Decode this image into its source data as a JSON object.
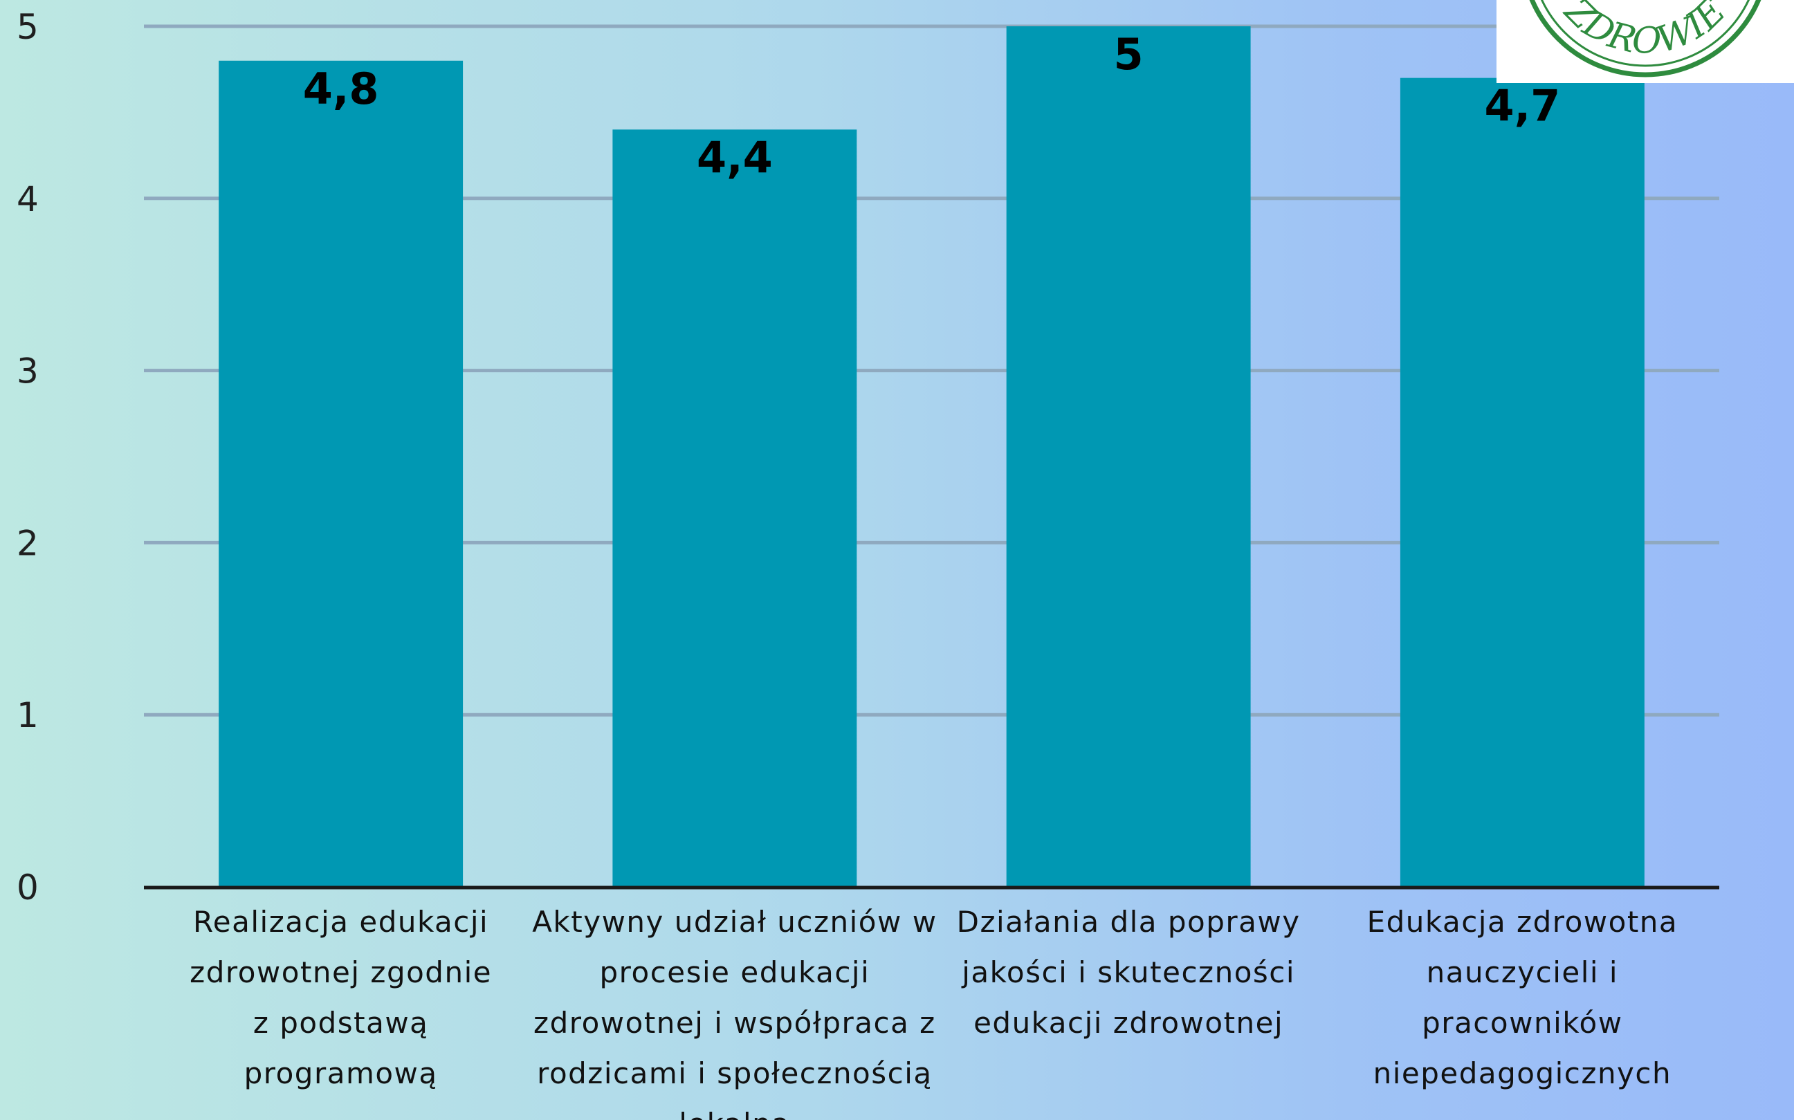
{
  "chart_data": {
    "type": "bar",
    "categories": [
      [
        "Realizacja edukacji",
        "zdrowotnej zgodnie",
        "z podstawą",
        "programową"
      ],
      [
        "Aktywny udział uczniów w",
        "procesie edukacji",
        "zdrowotnej i współpraca z",
        "rodzicami i społecznością",
        "lokalną"
      ],
      [
        "Działania dla poprawy",
        "jakości  i skuteczności",
        "edukacji zdrowotnej"
      ],
      [
        "Edukacja zdrowotna",
        "nauczycieli i",
        "pracowników",
        "niepedagogicznych"
      ]
    ],
    "values": [
      4.8,
      4.4,
      5,
      4.7
    ],
    "value_labels": [
      "4,8",
      "4,4",
      "5",
      "4,7"
    ],
    "y_ticks": [
      "0",
      "1",
      "2",
      "3",
      "4",
      "5"
    ],
    "ylim": [
      0,
      5
    ],
    "grid": true,
    "bar_color": "#0098b3",
    "grid_color": "#8fa9bf",
    "axis_color": "#1a1a1a"
  },
  "logo": {
    "text": "ZDROWIE",
    "color": "#2e8b3e"
  }
}
